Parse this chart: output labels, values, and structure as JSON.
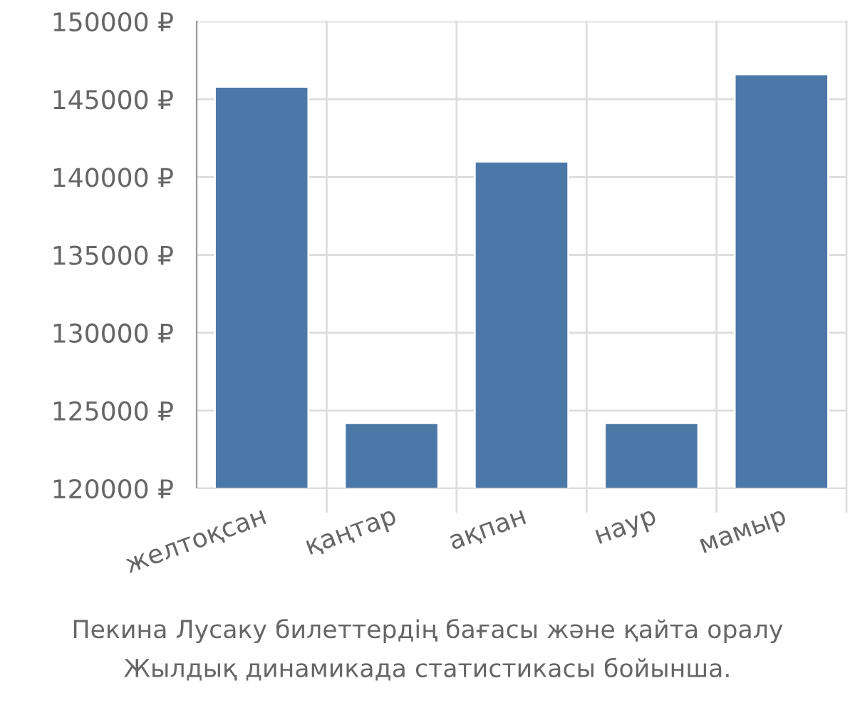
{
  "chart_data": {
    "type": "bar",
    "categories": [
      "желтоқсан",
      "қаңтар",
      "ақпан",
      "наур",
      "мамыр"
    ],
    "values": [
      145800,
      124200,
      141000,
      124200,
      146600
    ],
    "color": "#4c78a8",
    "ylim": [
      120000,
      150000
    ],
    "yticks": [
      {
        "value": 120000,
        "label": "120000 ₽"
      },
      {
        "value": 125000,
        "label": "125000 ₽"
      },
      {
        "value": 130000,
        "label": "130000 ₽"
      },
      {
        "value": 135000,
        "label": "135000 ₽"
      },
      {
        "value": 140000,
        "label": "140000 ₽"
      },
      {
        "value": 145000,
        "label": "145000 ₽"
      },
      {
        "value": 150000,
        "label": "150000 ₽"
      }
    ],
    "grid": true,
    "annotations": [
      "Пекина Лусаку билеттердің бағасы және қайта оралу",
      "Жылдық динамикада статистикасы бойынша."
    ]
  }
}
